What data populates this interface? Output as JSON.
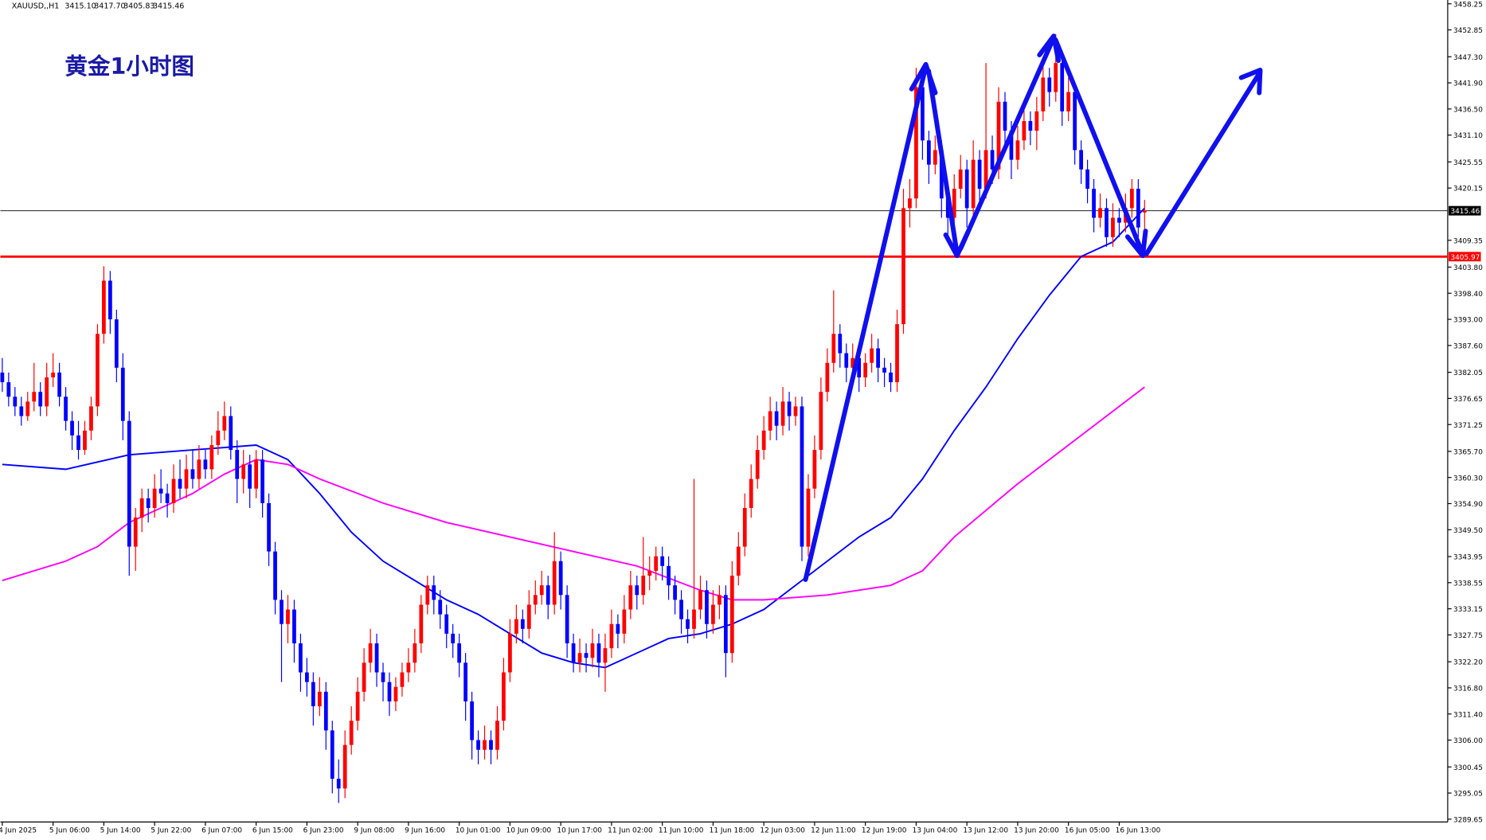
{
  "chart_data": {
    "type": "candlestick",
    "header": {
      "symbol": "XAUUSD,,H1",
      "ohlc": [
        "3415.10",
        "3417.70",
        "3405.83",
        "3415.46"
      ]
    },
    "annotation": "黄金1小时图",
    "up_color": "#ff0000",
    "down_color": "#0000ff",
    "ylim": [
      3289.65,
      3458.25
    ],
    "yticks": [
      3458.25,
      3452.85,
      {
        "value": 3447.3,
        "label": "3447.30"
      },
      {
        "value": 3441.9,
        "label": "3441.90"
      },
      {
        "value": 3436.5,
        "label": "3436.50"
      },
      {
        "value": 3431.1,
        "label": "3431.10"
      },
      3425.55,
      3420.15,
      3409.35,
      {
        "value": 3403.8,
        "label": "3403.80"
      },
      {
        "value": 3398.4,
        "label": "3398.40"
      },
      {
        "value": 3393,
        "label": "3393.00"
      },
      {
        "value": 3387.6,
        "label": "3387.60"
      },
      3382.05,
      3376.65,
      3371.25,
      {
        "value": 3365.7,
        "label": "3365.70"
      },
      {
        "value": 3360.3,
        "label": "3360.30"
      },
      {
        "value": 3354.9,
        "label": "3354.90"
      },
      {
        "value": 3349.5,
        "label": "3349.50"
      },
      3343.95,
      3338.55,
      3333.15,
      3327.75,
      {
        "value": 3322.2,
        "label": "3322.20"
      },
      {
        "value": 3316.8,
        "label": "3316.80"
      },
      {
        "value": 3311.4,
        "label": "3311.40"
      },
      {
        "value": 3306,
        "label": "3306.00"
      },
      3300.45,
      3295.05,
      3289.65
    ],
    "xticks": [
      {
        "value": 0,
        "label": "4 Jun 2025"
      },
      {
        "value": 8,
        "label": "5 Jun 06:00"
      },
      {
        "value": 16,
        "label": "5 Jun 14:00"
      },
      {
        "value": 24,
        "label": "5 Jun 22:00"
      },
      {
        "value": 32,
        "label": "6 Jun 07:00"
      },
      {
        "value": 40,
        "label": "6 Jun 15:00"
      },
      {
        "value": 48,
        "label": "6 Jun 23:00"
      },
      {
        "value": 56,
        "label": "9 Jun 08:00"
      },
      {
        "value": 64,
        "label": "9 Jun 16:00"
      },
      {
        "value": 72,
        "label": "10 Jun 01:00"
      },
      {
        "value": 80,
        "label": "10 Jun 09:00"
      },
      {
        "value": 88,
        "label": "10 Jun 17:00"
      },
      {
        "value": 96,
        "label": "11 Jun 02:00"
      },
      {
        "value": 104,
        "label": "11 Jun 10:00"
      },
      {
        "value": 112,
        "label": "11 Jun 18:00"
      },
      {
        "value": 120,
        "label": "12 Jun 03:00"
      },
      {
        "value": 128,
        "label": "12 Jun 11:00"
      },
      {
        "value": 136,
        "label": "12 Jun 19:00"
      },
      {
        "value": 144,
        "label": "13 Jun 04:00"
      },
      {
        "value": 152,
        "label": "13 Jun 12:00"
      },
      {
        "value": 160,
        "label": "13 Jun 20:00"
      },
      {
        "value": 168,
        "label": "16 Jun 05:00"
      },
      {
        "value": 176,
        "label": "16 Jun 13:00"
      }
    ],
    "price_lines": [
      {
        "value": 3415.46,
        "color": "#000000"
      },
      {
        "value": 3405.97,
        "color": "#ff0000"
      }
    ],
    "ma_lines": [
      {
        "color": "#0000ff",
        "x": [
          0,
          10,
          20,
          30,
          40,
          45,
          50,
          55,
          60,
          65,
          70,
          75,
          80,
          85,
          90,
          95,
          100,
          105,
          110,
          115,
          120,
          125,
          130,
          135,
          140,
          145,
          150,
          155,
          160,
          165,
          170,
          175,
          180
        ],
        "values": [
          3363,
          3362,
          3365,
          3366,
          3367,
          3364,
          3357,
          3349,
          3343,
          3339,
          3335,
          3332,
          3328,
          3324,
          3322,
          3321,
          3324,
          3327,
          3328,
          3330,
          3333,
          3338,
          3343,
          3348,
          3352,
          3360,
          3370,
          3379,
          3389,
          3398,
          3406,
          3409,
          3416
        ]
      },
      {
        "color": "#ff00ff",
        "x": [
          0,
          10,
          15,
          20,
          30,
          35,
          40,
          45,
          50,
          60,
          70,
          80,
          90,
          100,
          110,
          115,
          120,
          130,
          140,
          145,
          150,
          160,
          170,
          180
        ],
        "values": [
          3339,
          3343,
          3346,
          3351,
          3357,
          3361,
          3364,
          3363,
          3360,
          3355,
          3351,
          3348,
          3345,
          3342,
          3337,
          3335,
          3335,
          3336,
          3338,
          3341,
          3348,
          3359,
          3369,
          3379
        ]
      }
    ],
    "candles": [
      [
        3382,
        3385,
        3378,
        3380
      ],
      [
        3380,
        3382,
        3375,
        3377
      ],
      [
        3377,
        3379,
        3373,
        3375
      ],
      [
        3375,
        3377,
        3371,
        3373
      ],
      [
        3373,
        3378,
        3372,
        3376
      ],
      [
        3376,
        3384,
        3374,
        3378
      ],
      [
        3378,
        3380,
        3373,
        3375
      ],
      [
        3375,
        3384,
        3373,
        3381
      ],
      [
        3381,
        3386,
        3379,
        3382
      ],
      [
        3382,
        3384,
        3375,
        3377
      ],
      [
        3377,
        3379,
        3370,
        3372
      ],
      [
        3372,
        3374,
        3366,
        3369
      ],
      [
        3369,
        3372,
        3364,
        3366
      ],
      [
        3366,
        3372,
        3365,
        3370
      ],
      [
        3370,
        3377,
        3368,
        3375
      ],
      [
        3375,
        3392,
        3373,
        3390
      ],
      [
        3390,
        3404,
        3388,
        3401
      ],
      [
        3401,
        3403,
        3390,
        3393
      ],
      [
        3393,
        3395,
        3380,
        3383
      ],
      [
        3383,
        3386,
        3368,
        3372
      ],
      [
        3372,
        3374,
        3340,
        3346
      ],
      [
        3346,
        3354,
        3341,
        3352
      ],
      [
        3352,
        3358,
        3349,
        3356
      ],
      [
        3356,
        3358,
        3351,
        3354
      ],
      [
        3354,
        3361,
        3352,
        3358
      ],
      [
        3358,
        3362,
        3355,
        3357
      ],
      [
        3357,
        3359,
        3352,
        3355
      ],
      [
        3355,
        3363,
        3353,
        3360
      ],
      [
        3360,
        3364,
        3356,
        3358
      ],
      [
        3358,
        3365,
        3356,
        3362
      ],
      [
        3362,
        3366,
        3358,
        3360
      ],
      [
        3360,
        3367,
        3358,
        3364
      ],
      [
        3364,
        3366,
        3360,
        3362
      ],
      [
        3362,
        3369,
        3360,
        3367
      ],
      [
        3367,
        3374,
        3365,
        3370
      ],
      [
        3370,
        3376,
        3368,
        3373
      ],
      [
        3373,
        3375,
        3364,
        3366
      ],
      [
        3366,
        3368,
        3355,
        3360
      ],
      [
        3360,
        3366,
        3357,
        3363
      ],
      [
        3363,
        3365,
        3354,
        3358
      ],
      [
        3358,
        3366,
        3356,
        3364
      ],
      [
        3364,
        3366,
        3352,
        3355
      ],
      [
        3355,
        3357,
        3342,
        3345
      ],
      [
        3345,
        3347,
        3332,
        3335
      ],
      [
        3335,
        3337,
        3318,
        3330
      ],
      [
        3330,
        3336,
        3326,
        3333
      ],
      [
        3333,
        3335,
        3322,
        3326
      ],
      [
        3326,
        3328,
        3316,
        3320
      ],
      [
        3320,
        3323,
        3315,
        3318
      ],
      [
        3318,
        3320,
        3309,
        3313
      ],
      [
        3313,
        3319,
        3311,
        3316
      ],
      [
        3316,
        3318,
        3304,
        3308
      ],
      [
        3308,
        3310,
        3295,
        3298
      ],
      [
        3298,
        3302,
        3293,
        3296
      ],
      [
        3296,
        3308,
        3294,
        3305
      ],
      [
        3305,
        3313,
        3303,
        3310
      ],
      [
        3310,
        3319,
        3308,
        3316
      ],
      [
        3316,
        3325,
        3314,
        3322
      ],
      [
        3322,
        3329,
        3320,
        3326
      ],
      [
        3326,
        3328,
        3317,
        3320
      ],
      [
        3320,
        3322,
        3314,
        3318
      ],
      [
        3318,
        3320,
        3311,
        3314
      ],
      [
        3314,
        3319,
        3312,
        3317
      ],
      [
        3317,
        3322,
        3315,
        3320
      ],
      [
        3320,
        3325,
        3318,
        3322
      ],
      [
        3322,
        3329,
        3320,
        3326
      ],
      [
        3326,
        3336,
        3324,
        3334
      ],
      [
        3334,
        3340,
        3332,
        3338
      ],
      [
        3338,
        3340,
        3332,
        3335
      ],
      [
        3335,
        3337,
        3329,
        3332
      ],
      [
        3332,
        3334,
        3325,
        3328
      ],
      [
        3328,
        3330,
        3323,
        3326
      ],
      [
        3326,
        3328,
        3319,
        3322
      ],
      [
        3322,
        3324,
        3310,
        3314
      ],
      [
        3314,
        3316,
        3302,
        3306
      ],
      [
        3306,
        3308,
        3301,
        3304
      ],
      [
        3304,
        3309,
        3302,
        3306
      ],
      [
        3306,
        3308,
        3301,
        3304
      ],
      [
        3304,
        3313,
        3302,
        3310
      ],
      [
        3310,
        3323,
        3308,
        3320
      ],
      [
        3320,
        3331,
        3318,
        3328
      ],
      [
        3328,
        3334,
        3326,
        3331
      ],
      [
        3331,
        3333,
        3326,
        3329
      ],
      [
        3329,
        3337,
        3327,
        3334
      ],
      [
        3334,
        3339,
        3332,
        3336
      ],
      [
        3336,
        3341,
        3334,
        3338
      ],
      [
        3338,
        3340,
        3331,
        3334
      ],
      [
        3334,
        3349,
        3332,
        3343
      ],
      [
        3343,
        3345,
        3333,
        3336
      ],
      [
        3336,
        3338,
        3323,
        3326
      ],
      [
        3326,
        3328,
        3320,
        3322
      ],
      [
        3322,
        3327,
        3320,
        3324
      ],
      [
        3324,
        3326,
        3320,
        3323
      ],
      [
        3323,
        3329,
        3321,
        3326
      ],
      [
        3326,
        3328,
        3319,
        3322
      ],
      [
        3322,
        3328,
        3316,
        3325
      ],
      [
        3325,
        3333,
        3323,
        3330
      ],
      [
        3330,
        3332,
        3325,
        3328
      ],
      [
        3328,
        3336,
        3326,
        3333
      ],
      [
        3333,
        3341,
        3331,
        3338
      ],
      [
        3338,
        3340,
        3333,
        3336
      ],
      [
        3336,
        3348,
        3334,
        3340
      ],
      [
        3340,
        3344,
        3337,
        3341
      ],
      [
        3341,
        3346,
        3339,
        3344
      ],
      [
        3344,
        3346,
        3339,
        3342
      ],
      [
        3342,
        3344,
        3335,
        3338
      ],
      [
        3338,
        3340,
        3332,
        3335
      ],
      [
        3335,
        3337,
        3328,
        3331
      ],
      [
        3331,
        3333,
        3326,
        3329
      ],
      [
        3329,
        3360,
        3327,
        3333
      ],
      [
        3333,
        3340,
        3331,
        3337
      ],
      [
        3337,
        3339,
        3327,
        3330
      ],
      [
        3330,
        3337,
        3328,
        3334
      ],
      [
        3334,
        3338,
        3331,
        3336
      ],
      [
        3336,
        3338,
        3319,
        3324
      ],
      [
        3324,
        3343,
        3322,
        3340
      ],
      [
        3340,
        3349,
        3338,
        3346
      ],
      [
        3346,
        3357,
        3344,
        3354
      ],
      [
        3354,
        3363,
        3352,
        3360
      ],
      [
        3360,
        3369,
        3358,
        3366
      ],
      [
        3366,
        3373,
        3364,
        3370
      ],
      [
        3370,
        3377,
        3368,
        3374
      ],
      [
        3374,
        3376,
        3368,
        3371
      ],
      [
        3371,
        3379,
        3369,
        3376
      ],
      [
        3376,
        3378,
        3370,
        3373
      ],
      [
        3373,
        3377,
        3371,
        3375
      ],
      [
        3375,
        3377,
        3343,
        3346
      ],
      [
        3346,
        3361,
        3344,
        3358
      ],
      [
        3358,
        3369,
        3356,
        3366
      ],
      [
        3366,
        3381,
        3364,
        3378
      ],
      [
        3378,
        3387,
        3376,
        3384
      ],
      [
        3384,
        3399,
        3382,
        3390
      ],
      [
        3390,
        3392,
        3383,
        3386
      ],
      [
        3386,
        3388,
        3380,
        3383
      ],
      [
        3383,
        3388,
        3381,
        3385
      ],
      [
        3385,
        3387,
        3378,
        3381
      ],
      [
        3381,
        3386,
        3379,
        3384
      ],
      [
        3384,
        3390,
        3382,
        3387
      ],
      [
        3387,
        3389,
        3380,
        3383
      ],
      [
        3383,
        3385,
        3379,
        3382
      ],
      [
        3382,
        3384,
        3378,
        3380
      ],
      [
        3380,
        3395,
        3378,
        3392
      ],
      [
        3392,
        3420,
        3390,
        3416
      ],
      [
        3416,
        3422,
        3412,
        3418
      ],
      [
        3418,
        3445,
        3416,
        3441
      ],
      [
        3441,
        3443,
        3426,
        3430
      ],
      [
        3430,
        3432,
        3421,
        3425
      ],
      [
        3425,
        3431,
        3423,
        3428
      ],
      [
        3428,
        3430,
        3414,
        3418
      ],
      [
        3418,
        3420,
        3410,
        3414
      ],
      [
        3414,
        3423,
        3412,
        3420
      ],
      [
        3420,
        3427,
        3418,
        3424
      ],
      [
        3424,
        3426,
        3412,
        3416
      ],
      [
        3416,
        3430,
        3414,
        3426
      ],
      [
        3426,
        3428,
        3417,
        3420
      ],
      [
        3420,
        3446,
        3418,
        3428
      ],
      [
        3428,
        3431,
        3421,
        3424
      ],
      [
        3424,
        3441,
        3422,
        3438
      ],
      [
        3438,
        3440,
        3429,
        3432
      ],
      [
        3432,
        3434,
        3422,
        3426
      ],
      [
        3426,
        3433,
        3424,
        3430
      ],
      [
        3430,
        3437,
        3428,
        3434
      ],
      [
        3434,
        3436,
        3429,
        3432
      ],
      [
        3432,
        3439,
        3428,
        3436
      ],
      [
        3436,
        3446,
        3434,
        3443
      ],
      [
        3443,
        3445,
        3437,
        3440
      ],
      [
        3440,
        3452,
        3438,
        3446
      ],
      [
        3446,
        3448,
        3433,
        3436
      ],
      [
        3436,
        3443,
        3434,
        3440
      ],
      [
        3440,
        3442,
        3425,
        3428
      ],
      [
        3428,
        3430,
        3421,
        3424
      ],
      [
        3424,
        3426,
        3417,
        3420
      ],
      [
        3420,
        3422,
        3411,
        3414
      ],
      [
        3414,
        3419,
        3412,
        3416
      ],
      [
        3416,
        3418,
        3408,
        3410
      ],
      [
        3410,
        3417,
        3408,
        3414
      ],
      [
        3414,
        3416,
        3410,
        3413
      ],
      [
        3413,
        3419,
        3411,
        3416
      ],
      [
        3416,
        3422,
        3414,
        3420
      ],
      [
        3420,
        3422,
        3410,
        3412
      ],
      [
        3415.1,
        3417.7,
        3405.83,
        3415.46
      ]
    ]
  }
}
